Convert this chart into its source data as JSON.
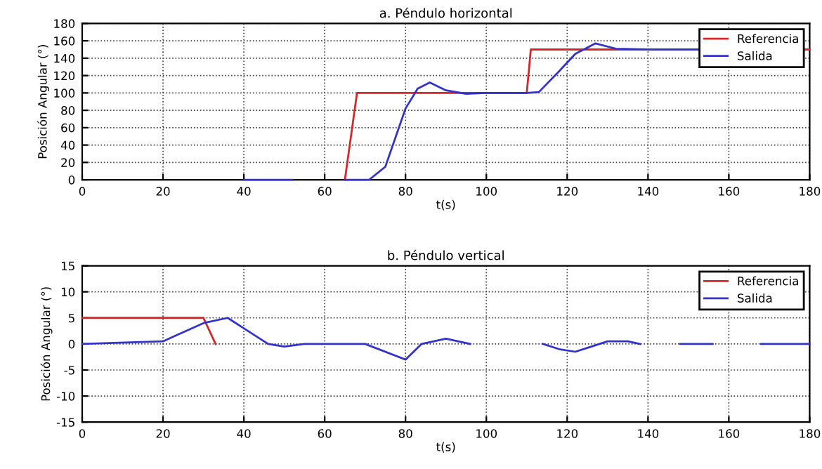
{
  "chart_data": [
    {
      "type": "line",
      "title": "a. Péndulo horizontal",
      "xlabel": "t(s)",
      "ylabel": "Posición Angular (°)",
      "xlim": [
        0,
        180
      ],
      "xticks": [
        0,
        20,
        40,
        60,
        80,
        100,
        120,
        140,
        160,
        180
      ],
      "ylim": [
        0,
        180
      ],
      "yticks": [
        0,
        20,
        40,
        60,
        80,
        100,
        120,
        140,
        160,
        180
      ],
      "grid": true,
      "legend": "top right",
      "series": [
        {
          "name": "Referencia",
          "color": "#d62728",
          "x": [
            65,
            68,
            110,
            111,
            180
          ],
          "values": [
            0,
            100,
            100,
            150,
            150
          ]
        },
        {
          "name": "Salida",
          "color": "#3333cc",
          "x": [
            40,
            52,
            52.5,
            65,
            71,
            75,
            80,
            83,
            86,
            90,
            95,
            100,
            110,
            113,
            118,
            122,
            127,
            132,
            140,
            153
          ],
          "values": [
            0,
            0,
            null,
            0,
            0,
            15,
            82,
            105,
            112,
            103,
            99,
            100,
            100,
            101,
            125,
            145,
            157,
            151,
            150,
            150
          ]
        }
      ]
    },
    {
      "type": "line",
      "title": "b. Péndulo vertical",
      "xlabel": "t(s)",
      "ylabel": "Posición Angular (°)",
      "xlim": [
        0,
        180
      ],
      "xticks": [
        0,
        20,
        40,
        60,
        80,
        100,
        120,
        140,
        160,
        180
      ],
      "ylim": [
        -15,
        15
      ],
      "yticks": [
        -15,
        -10,
        -5,
        0,
        5,
        10,
        15
      ],
      "grid": true,
      "legend": "top right",
      "series": [
        {
          "name": "Referencia",
          "color": "#d62728",
          "x": [
            0,
            30,
            33
          ],
          "values": [
            5,
            5,
            0
          ]
        },
        {
          "name": "Salida",
          "color": "#3333cc",
          "x": [
            0,
            20,
            30,
            36,
            40,
            46,
            50,
            55,
            70,
            80,
            84,
            90,
            96,
            105,
            114,
            118,
            122,
            126,
            130,
            135,
            138,
            143,
            148,
            156,
            162,
            168,
            180
          ],
          "values": [
            0,
            0.5,
            4,
            5,
            3,
            0,
            -0.5,
            0,
            0,
            -3,
            0,
            1,
            0,
            null,
            0,
            -1,
            -1.5,
            -0.5,
            0.5,
            0.5,
            0,
            null,
            0,
            0,
            null,
            0,
            0
          ]
        }
      ]
    }
  ]
}
